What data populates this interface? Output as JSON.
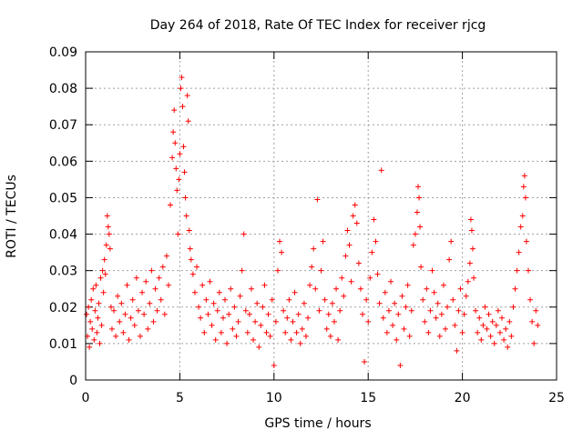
{
  "chart_data": {
    "type": "scatter",
    "title": "Day 264 of 2018, Rate Of TEC Index for receiver rjcg",
    "xlabel": "GPS time / hours",
    "ylabel": "ROTI / TECUs",
    "xlim": [
      0,
      25
    ],
    "ylim": [
      0,
      0.09
    ],
    "xticks": [
      0,
      5,
      10,
      15,
      20,
      25
    ],
    "xtick_labels": [
      "0",
      "5",
      "10",
      "15",
      "20",
      "25"
    ],
    "yticks": [
      0,
      0.01,
      0.02,
      0.03,
      0.04,
      0.05,
      0.06,
      0.07,
      0.08,
      0.09
    ],
    "ytick_labels": [
      "0",
      "0.01",
      "0.02",
      "0.03",
      "0.04",
      "0.05",
      "0.06",
      "0.07",
      "0.08",
      "0.09"
    ],
    "grid": true,
    "marker": "+",
    "marker_color": "#ff0000",
    "series": [
      {
        "name": "rjcg ROTI",
        "points": [
          [
            0.05,
            0.018
          ],
          [
            0.1,
            0.012
          ],
          [
            0.15,
            0.02
          ],
          [
            0.2,
            0.009
          ],
          [
            0.25,
            0.016
          ],
          [
            0.3,
            0.022
          ],
          [
            0.35,
            0.014
          ],
          [
            0.4,
            0.025
          ],
          [
            0.45,
            0.011
          ],
          [
            0.5,
            0.019
          ],
          [
            0.55,
            0.026
          ],
          [
            0.6,
            0.013
          ],
          [
            0.65,
            0.017
          ],
          [
            0.7,
            0.021
          ],
          [
            0.75,
            0.01
          ],
          [
            0.8,
            0.028
          ],
          [
            0.85,
            0.015
          ],
          [
            0.9,
            0.03
          ],
          [
            0.95,
            0.024
          ],
          [
            1.0,
            0.033
          ],
          [
            1.05,
            0.029
          ],
          [
            1.1,
            0.037
          ],
          [
            1.15,
            0.045
          ],
          [
            1.2,
            0.042
          ],
          [
            1.25,
            0.04
          ],
          [
            1.3,
            0.036
          ],
          [
            1.35,
            0.02
          ],
          [
            1.4,
            0.014
          ],
          [
            1.5,
            0.019
          ],
          [
            1.6,
            0.012
          ],
          [
            1.7,
            0.023
          ],
          [
            1.8,
            0.016
          ],
          [
            1.9,
            0.021
          ],
          [
            2.0,
            0.013
          ],
          [
            2.1,
            0.018
          ],
          [
            2.2,
            0.026
          ],
          [
            2.3,
            0.011
          ],
          [
            2.4,
            0.017
          ],
          [
            2.5,
            0.022
          ],
          [
            2.6,
            0.015
          ],
          [
            2.7,
            0.028
          ],
          [
            2.8,
            0.019
          ],
          [
            2.9,
            0.012
          ],
          [
            3.0,
            0.024
          ],
          [
            3.1,
            0.018
          ],
          [
            3.2,
            0.027
          ],
          [
            3.3,
            0.014
          ],
          [
            3.4,
            0.021
          ],
          [
            3.5,
            0.03
          ],
          [
            3.6,
            0.016
          ],
          [
            3.7,
            0.025
          ],
          [
            3.8,
            0.019
          ],
          [
            3.9,
            0.028
          ],
          [
            4.0,
            0.022
          ],
          [
            4.1,
            0.031
          ],
          [
            4.2,
            0.018
          ],
          [
            4.3,
            0.034
          ],
          [
            4.4,
            0.026
          ],
          [
            4.5,
            0.048
          ],
          [
            4.6,
            0.061
          ],
          [
            4.65,
            0.068
          ],
          [
            4.7,
            0.074
          ],
          [
            4.75,
            0.065
          ],
          [
            4.8,
            0.058
          ],
          [
            4.85,
            0.052
          ],
          [
            4.9,
            0.04
          ],
          [
            4.95,
            0.055
          ],
          [
            5.0,
            0.062
          ],
          [
            5.05,
            0.08
          ],
          [
            5.1,
            0.083
          ],
          [
            5.15,
            0.075
          ],
          [
            5.2,
            0.064
          ],
          [
            5.25,
            0.057
          ],
          [
            5.3,
            0.05
          ],
          [
            5.35,
            0.045
          ],
          [
            5.4,
            0.078
          ],
          [
            5.45,
            0.071
          ],
          [
            5.5,
            0.041
          ],
          [
            5.55,
            0.036
          ],
          [
            5.6,
            0.033
          ],
          [
            5.7,
            0.029
          ],
          [
            5.8,
            0.024
          ],
          [
            5.9,
            0.031
          ],
          [
            6.0,
            0.02
          ],
          [
            6.1,
            0.017
          ],
          [
            6.2,
            0.026
          ],
          [
            6.3,
            0.013
          ],
          [
            6.4,
            0.022
          ],
          [
            6.5,
            0.018
          ],
          [
            6.6,
            0.027
          ],
          [
            6.7,
            0.015
          ],
          [
            6.8,
            0.021
          ],
          [
            6.9,
            0.011
          ],
          [
            7.0,
            0.019
          ],
          [
            7.1,
            0.024
          ],
          [
            7.2,
            0.013
          ],
          [
            7.3,
            0.017
          ],
          [
            7.4,
            0.022
          ],
          [
            7.5,
            0.01
          ],
          [
            7.6,
            0.018
          ],
          [
            7.7,
            0.025
          ],
          [
            7.8,
            0.014
          ],
          [
            7.9,
            0.02
          ],
          [
            8.0,
            0.012
          ],
          [
            8.1,
            0.016
          ],
          [
            8.2,
            0.023
          ],
          [
            8.3,
            0.03
          ],
          [
            8.4,
            0.04
          ],
          [
            8.5,
            0.019
          ],
          [
            8.6,
            0.013
          ],
          [
            8.7,
            0.018
          ],
          [
            8.8,
            0.025
          ],
          [
            8.9,
            0.011
          ],
          [
            9.0,
            0.016
          ],
          [
            9.1,
            0.021
          ],
          [
            9.2,
            0.009
          ],
          [
            9.3,
            0.015
          ],
          [
            9.4,
            0.02
          ],
          [
            9.5,
            0.026
          ],
          [
            9.6,
            0.013
          ],
          [
            9.7,
            0.018
          ],
          [
            9.8,
            0.012
          ],
          [
            9.9,
            0.022
          ],
          [
            10.0,
            0.004
          ],
          [
            10.1,
            0.016
          ],
          [
            10.2,
            0.03
          ],
          [
            10.3,
            0.038
          ],
          [
            10.4,
            0.035
          ],
          [
            10.5,
            0.019
          ],
          [
            10.6,
            0.013
          ],
          [
            10.7,
            0.017
          ],
          [
            10.8,
            0.022
          ],
          [
            10.9,
            0.011
          ],
          [
            11.0,
            0.016
          ],
          [
            11.1,
            0.024
          ],
          [
            11.2,
            0.013
          ],
          [
            11.3,
            0.018
          ],
          [
            11.4,
            0.01
          ],
          [
            11.5,
            0.014
          ],
          [
            11.6,
            0.021
          ],
          [
            11.7,
            0.012
          ],
          [
            11.8,
            0.017
          ],
          [
            11.9,
            0.026
          ],
          [
            12.0,
            0.031
          ],
          [
            12.1,
            0.036
          ],
          [
            12.2,
            0.025
          ],
          [
            12.3,
            0.0495
          ],
          [
            12.4,
            0.019
          ],
          [
            12.5,
            0.03
          ],
          [
            12.6,
            0.038
          ],
          [
            12.7,
            0.022
          ],
          [
            12.8,
            0.014
          ],
          [
            12.9,
            0.018
          ],
          [
            13.0,
            0.012
          ],
          [
            13.1,
            0.021
          ],
          [
            13.2,
            0.016
          ],
          [
            13.3,
            0.025
          ],
          [
            13.4,
            0.011
          ],
          [
            13.5,
            0.019
          ],
          [
            13.6,
            0.028
          ],
          [
            13.7,
            0.023
          ],
          [
            13.8,
            0.034
          ],
          [
            13.9,
            0.041
          ],
          [
            14.0,
            0.037
          ],
          [
            14.1,
            0.027
          ],
          [
            14.2,
            0.045
          ],
          [
            14.3,
            0.048
          ],
          [
            14.4,
            0.043
          ],
          [
            14.5,
            0.032
          ],
          [
            14.6,
            0.025
          ],
          [
            14.7,
            0.018
          ],
          [
            14.8,
            0.005
          ],
          [
            14.9,
            0.022
          ],
          [
            15.0,
            0.016
          ],
          [
            15.1,
            0.028
          ],
          [
            15.2,
            0.035
          ],
          [
            15.3,
            0.044
          ],
          [
            15.4,
            0.038
          ],
          [
            15.5,
            0.029
          ],
          [
            15.6,
            0.021
          ],
          [
            15.7,
            0.0575
          ],
          [
            15.8,
            0.017
          ],
          [
            15.9,
            0.024
          ],
          [
            16.0,
            0.013
          ],
          [
            16.1,
            0.019
          ],
          [
            16.2,
            0.027
          ],
          [
            16.3,
            0.015
          ],
          [
            16.4,
            0.021
          ],
          [
            16.5,
            0.011
          ],
          [
            16.6,
            0.018
          ],
          [
            16.7,
            0.004
          ],
          [
            16.8,
            0.023
          ],
          [
            16.9,
            0.014
          ],
          [
            17.0,
            0.02
          ],
          [
            17.1,
            0.026
          ],
          [
            17.2,
            0.012
          ],
          [
            17.3,
            0.019
          ],
          [
            17.4,
            0.037
          ],
          [
            17.5,
            0.04
          ],
          [
            17.6,
            0.046
          ],
          [
            17.65,
            0.053
          ],
          [
            17.7,
            0.05
          ],
          [
            17.75,
            0.042
          ],
          [
            17.8,
            0.031
          ],
          [
            17.9,
            0.022
          ],
          [
            18.0,
            0.016
          ],
          [
            18.1,
            0.025
          ],
          [
            18.2,
            0.013
          ],
          [
            18.3,
            0.019
          ],
          [
            18.4,
            0.03
          ],
          [
            18.5,
            0.024
          ],
          [
            18.6,
            0.017
          ],
          [
            18.7,
            0.021
          ],
          [
            18.8,
            0.012
          ],
          [
            18.9,
            0.018
          ],
          [
            19.0,
            0.026
          ],
          [
            19.1,
            0.014
          ],
          [
            19.2,
            0.02
          ],
          [
            19.3,
            0.033
          ],
          [
            19.4,
            0.038
          ],
          [
            19.5,
            0.022
          ],
          [
            19.6,
            0.015
          ],
          [
            19.7,
            0.008
          ],
          [
            19.8,
            0.019
          ],
          [
            19.9,
            0.025
          ],
          [
            20.0,
            0.013
          ],
          [
            20.1,
            0.018
          ],
          [
            20.2,
            0.023
          ],
          [
            20.3,
            0.027
          ],
          [
            20.4,
            0.032
          ],
          [
            20.45,
            0.044
          ],
          [
            20.5,
            0.041
          ],
          [
            20.55,
            0.036
          ],
          [
            20.6,
            0.028
          ],
          [
            20.7,
            0.019
          ],
          [
            20.8,
            0.013
          ],
          [
            20.9,
            0.017
          ],
          [
            21.0,
            0.011
          ],
          [
            21.1,
            0.015
          ],
          [
            21.2,
            0.02
          ],
          [
            21.3,
            0.014
          ],
          [
            21.4,
            0.018
          ],
          [
            21.5,
            0.012
          ],
          [
            21.6,
            0.016
          ],
          [
            21.7,
            0.01
          ],
          [
            21.8,
            0.015
          ],
          [
            21.9,
            0.019
          ],
          [
            22.0,
            0.013
          ],
          [
            22.1,
            0.017
          ],
          [
            22.2,
            0.011
          ],
          [
            22.3,
            0.014
          ],
          [
            22.4,
            0.009
          ],
          [
            22.5,
            0.016
          ],
          [
            22.6,
            0.012
          ],
          [
            22.7,
            0.02
          ],
          [
            22.8,
            0.025
          ],
          [
            22.9,
            0.03
          ],
          [
            23.0,
            0.035
          ],
          [
            23.1,
            0.042
          ],
          [
            23.2,
            0.045
          ],
          [
            23.25,
            0.053
          ],
          [
            23.3,
            0.056
          ],
          [
            23.35,
            0.05
          ],
          [
            23.4,
            0.038
          ],
          [
            23.5,
            0.03
          ],
          [
            23.6,
            0.022
          ],
          [
            23.7,
            0.016
          ],
          [
            23.8,
            0.01
          ],
          [
            23.9,
            0.019
          ],
          [
            24.0,
            0.015
          ]
        ]
      }
    ]
  }
}
